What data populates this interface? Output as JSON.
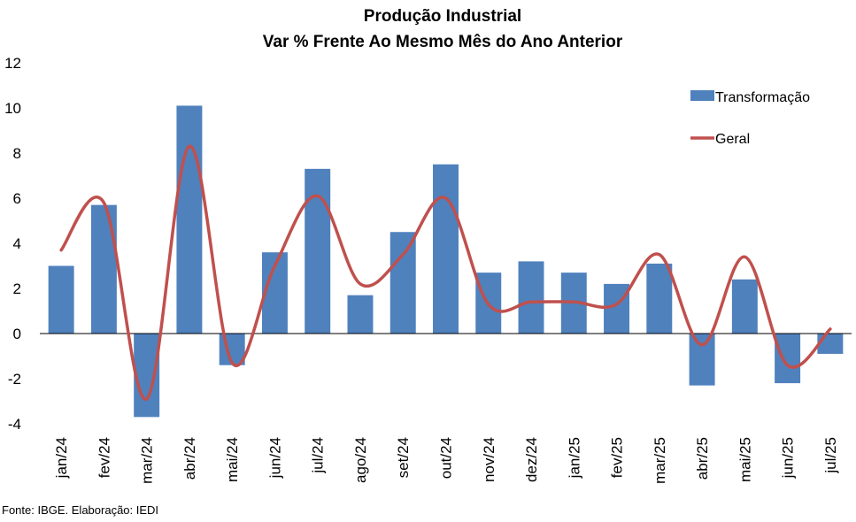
{
  "chart_data": {
    "type": "bar",
    "title": "Produção Industrial",
    "subtitle": "Var % Frente Ao Mesmo Mês do Ano Anterior",
    "categories": [
      "jan/24",
      "fev/24",
      "mar/24",
      "abr/24",
      "mai/24",
      "jun/24",
      "jul/24",
      "ago/24",
      "set/24",
      "out/24",
      "nov/24",
      "dez/24",
      "jan/25",
      "fev/25",
      "mar/25",
      "abr/25",
      "mai/25",
      "jun/25",
      "jul/25"
    ],
    "series": [
      {
        "name": "Transformação",
        "type": "bar",
        "color": "#4F81BD",
        "values": [
          3.0,
          5.7,
          -3.7,
          10.1,
          -1.4,
          3.6,
          7.3,
          1.7,
          4.5,
          7.5,
          2.7,
          3.2,
          2.7,
          2.2,
          3.1,
          -2.3,
          2.4,
          -2.2,
          -0.9
        ]
      },
      {
        "name": "Geral",
        "type": "line",
        "color": "#C0504D",
        "values": [
          3.7,
          5.8,
          -2.9,
          8.3,
          -1.3,
          3.0,
          6.1,
          2.2,
          3.5,
          6.0,
          1.3,
          1.4,
          1.4,
          1.3,
          3.5,
          -0.5,
          3.4,
          -1.4,
          0.2
        ]
      }
    ],
    "ylim": [
      -4,
      12
    ],
    "yticks": [
      -4,
      -2,
      0,
      2,
      4,
      6,
      8,
      10,
      12
    ],
    "xlabel": "",
    "ylabel": "",
    "grid": false,
    "legend": "top-right"
  },
  "source_note": "Fonte: IBGE. Elaboração: IEDI"
}
